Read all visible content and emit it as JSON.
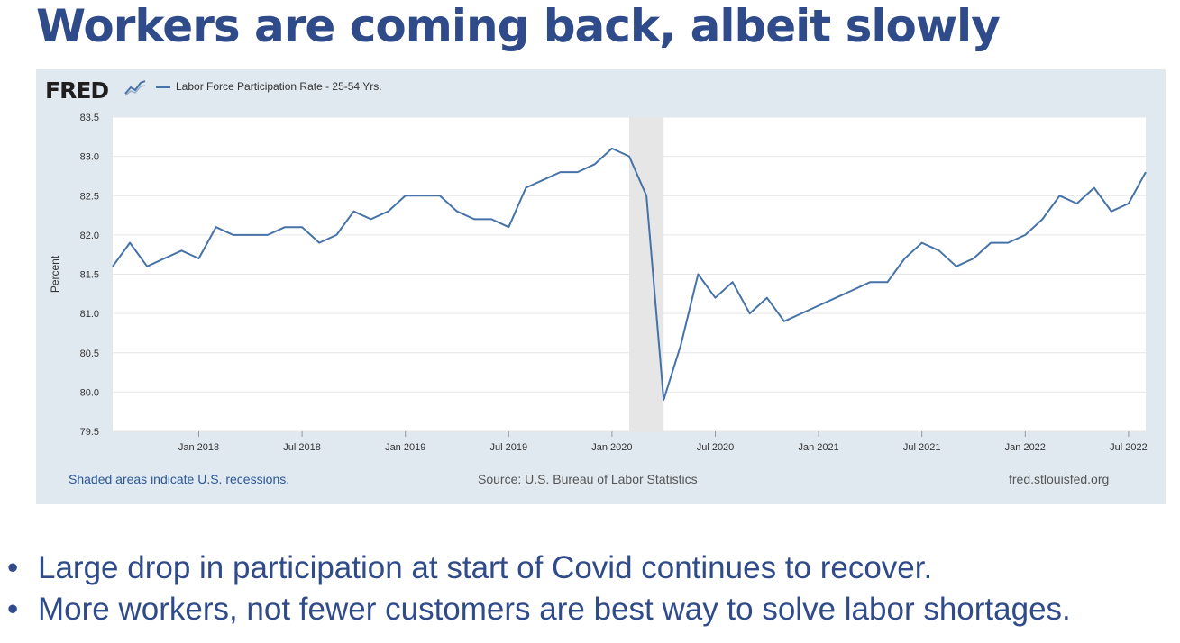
{
  "slide": {
    "title": "Workers are coming back, albeit slowly",
    "bullets": [
      "Large drop in participation at start of Covid continues to recover.",
      "More workers, not fewer customers are best way to solve labor shortages."
    ]
  },
  "fred": {
    "logo_text": "FRED",
    "notes": {
      "recessions": "Shaded areas indicate U.S. recessions.",
      "source": "Source: U.S. Bureau of Labor Statistics",
      "site": "fred.stlouisfed.org"
    }
  },
  "colors": {
    "title": "#2f4b8a",
    "line": "#4572a7",
    "panel": "#e1e9f0",
    "recession": "#e6e6e6"
  },
  "chart_data": {
    "type": "line",
    "title": "",
    "xlabel": "",
    "ylabel": "Percent",
    "ylim": [
      79.5,
      83.5
    ],
    "yticks": [
      "79.5",
      "80.0",
      "80.5",
      "81.0",
      "81.5",
      "82.0",
      "82.5",
      "83.0",
      "83.5"
    ],
    "xticks": [
      "Jan 2018",
      "Jul 2018",
      "Jan 2019",
      "Jul 2019",
      "Jan 2020",
      "Jul 2020",
      "Jan 2021",
      "Jul 2021",
      "Jan 2022",
      "Jul 2022"
    ],
    "grid": true,
    "legend": "top-left",
    "recession": {
      "start": "2020-02",
      "end": "2020-04"
    },
    "series": [
      {
        "name": "Labor Force Participation Rate - 25-54 Yrs.",
        "x": [
          "2017-08",
          "2017-09",
          "2017-10",
          "2017-11",
          "2017-12",
          "2018-01",
          "2018-02",
          "2018-03",
          "2018-04",
          "2018-05",
          "2018-06",
          "2018-07",
          "2018-08",
          "2018-09",
          "2018-10",
          "2018-11",
          "2018-12",
          "2019-01",
          "2019-02",
          "2019-03",
          "2019-04",
          "2019-05",
          "2019-06",
          "2019-07",
          "2019-08",
          "2019-09",
          "2019-10",
          "2019-11",
          "2019-12",
          "2020-01",
          "2020-02",
          "2020-03",
          "2020-04",
          "2020-05",
          "2020-06",
          "2020-07",
          "2020-08",
          "2020-09",
          "2020-10",
          "2020-11",
          "2020-12",
          "2021-01",
          "2021-02",
          "2021-03",
          "2021-04",
          "2021-05",
          "2021-06",
          "2021-07",
          "2021-08",
          "2021-09",
          "2021-10",
          "2021-11",
          "2021-12",
          "2022-01",
          "2022-02",
          "2022-03",
          "2022-04",
          "2022-05",
          "2022-06",
          "2022-07",
          "2022-08"
        ],
        "values": [
          81.6,
          81.9,
          81.6,
          81.7,
          81.8,
          81.7,
          82.1,
          82.0,
          82.0,
          82.0,
          82.1,
          82.1,
          81.9,
          82.0,
          82.3,
          82.2,
          82.3,
          82.5,
          82.5,
          82.5,
          82.3,
          82.2,
          82.2,
          82.1,
          82.6,
          82.7,
          82.8,
          82.8,
          82.9,
          83.1,
          83.0,
          82.5,
          79.9,
          80.6,
          81.5,
          81.2,
          81.4,
          81.0,
          81.2,
          80.9,
          81.0,
          81.1,
          81.2,
          81.3,
          81.4,
          81.4,
          81.7,
          81.9,
          81.8,
          81.6,
          81.7,
          81.9,
          81.9,
          82.0,
          82.2,
          82.5,
          82.4,
          82.6,
          82.3,
          82.4,
          82.8
        ]
      }
    ]
  }
}
